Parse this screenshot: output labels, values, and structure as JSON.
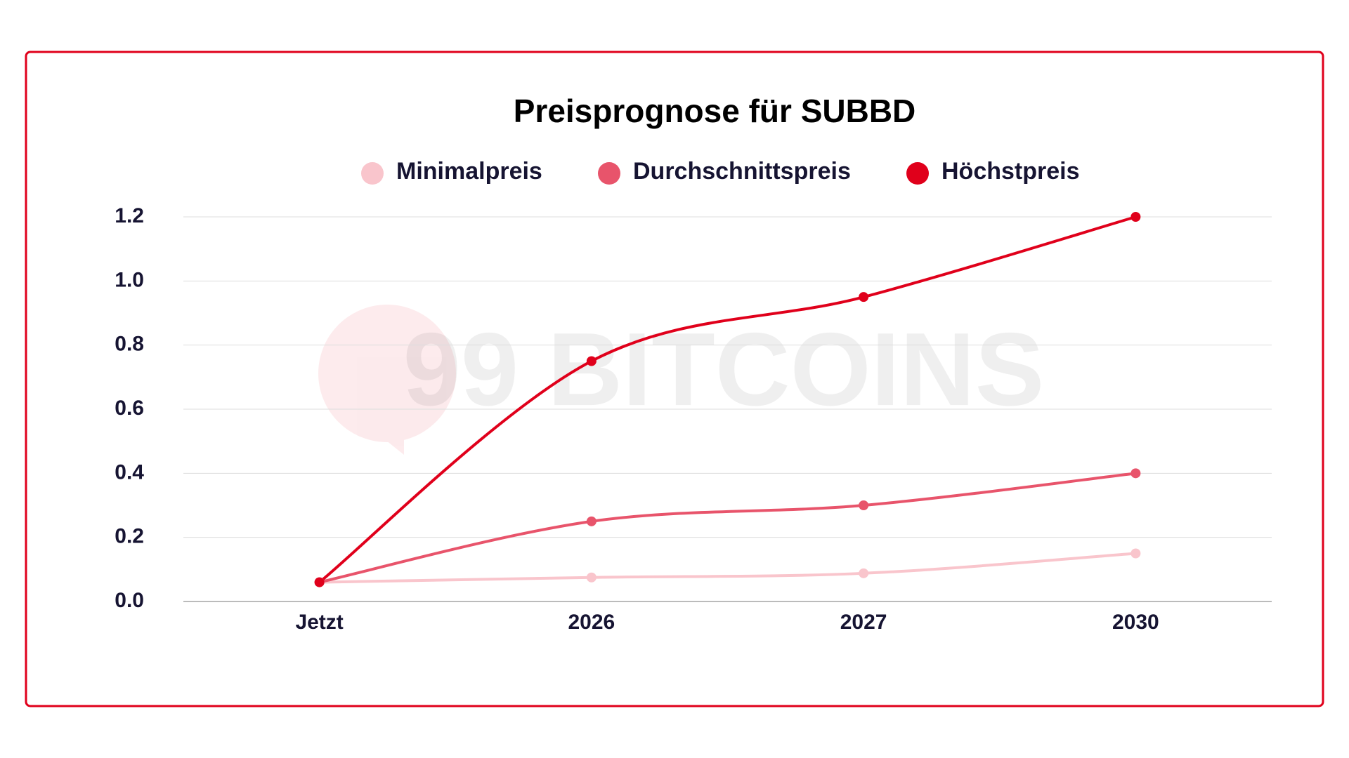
{
  "chart_data": {
    "type": "line",
    "title": "Preisprognose für SUBBD",
    "watermark": "99 BITCOINS",
    "categories": [
      "Jetzt",
      "2026",
      "2027",
      "2030"
    ],
    "series": [
      {
        "name": "Minimalpreis",
        "color": "#f9c5cc",
        "values": [
          0.06,
          0.075,
          0.088,
          0.15
        ]
      },
      {
        "name": "Durchschnittspreis",
        "color": "#e8546b",
        "values": [
          0.06,
          0.25,
          0.3,
          0.4
        ]
      },
      {
        "name": "Höchstpreis",
        "color": "#e0001b",
        "values": [
          0.06,
          0.75,
          0.95,
          1.2
        ]
      }
    ],
    "ylim": [
      0,
      1.2
    ],
    "yticks": [
      {
        "value": 0,
        "label": "0.0"
      },
      0.2,
      0.4,
      0.6,
      0.8,
      {
        "value": 1,
        "label": "1.0"
      },
      1.2
    ],
    "grid": true,
    "smooth": true
  }
}
